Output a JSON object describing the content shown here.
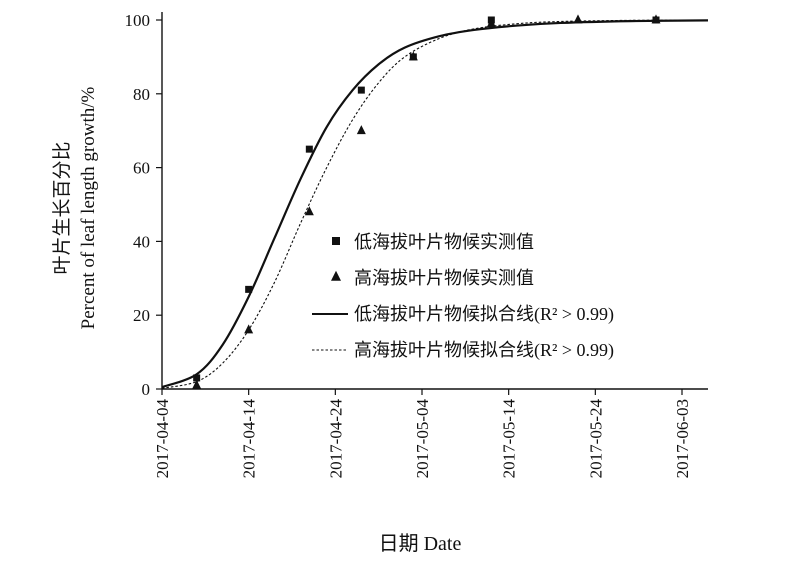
{
  "chart_data": {
    "type": "scatter",
    "ylabel_cn": "叶片生长百分比",
    "ylabel_en": "Percent of leaf length growth/%",
    "xlabel": "日期 Date",
    "ylim": [
      0,
      100
    ],
    "yticks": [
      0,
      20,
      40,
      60,
      80,
      100
    ],
    "xlim": [
      "2017-04-04",
      "2017-06-06"
    ],
    "xticks": [
      "2017-04-04",
      "2017-04-14",
      "2017-04-24",
      "2017-05-04",
      "2017-05-14",
      "2017-05-24",
      "2017-06-03"
    ],
    "legend_position": "center-right",
    "series": [
      {
        "name": "低海拔叶片物候实测值",
        "kind": "points",
        "marker": "square",
        "x": [
          "2017-04-08",
          "2017-04-14",
          "2017-04-21",
          "2017-04-27",
          "2017-05-03",
          "2017-05-12",
          "2017-05-31"
        ],
        "y": [
          3,
          27,
          65,
          81,
          90,
          100,
          100
        ]
      },
      {
        "name": "高海拔叶片物候实测值",
        "kind": "points",
        "marker": "triangle",
        "x": [
          "2017-04-08",
          "2017-04-14",
          "2017-04-21",
          "2017-04-27",
          "2017-05-03",
          "2017-05-12",
          "2017-05-22",
          "2017-05-31"
        ],
        "y": [
          1,
          16,
          48,
          70,
          90,
          99,
          100,
          100
        ]
      },
      {
        "name": "低海拔叶片物候拟合线",
        "r2_label": "R² > 0.99",
        "kind": "fit",
        "line_style": "solid",
        "x": [
          "2017-04-04",
          "2017-04-08",
          "2017-04-11",
          "2017-04-14",
          "2017-04-17",
          "2017-04-20",
          "2017-04-23",
          "2017-04-26",
          "2017-04-29",
          "2017-05-02",
          "2017-05-06",
          "2017-05-10",
          "2017-05-15",
          "2017-05-20",
          "2017-05-28",
          "2017-06-06"
        ],
        "y": [
          0.5,
          4,
          12,
          25,
          41,
          57,
          71,
          81,
          88,
          92.5,
          95.6,
          97.3,
          98.5,
          99.2,
          99.7,
          99.9
        ]
      },
      {
        "name": "高海拔叶片物候拟合线",
        "r2_label": "R² > 0.99",
        "kind": "fit",
        "line_style": "dotted",
        "x": [
          "2017-04-04",
          "2017-04-08",
          "2017-04-11",
          "2017-04-14",
          "2017-04-17",
          "2017-04-20",
          "2017-04-23",
          "2017-04-26",
          "2017-04-29",
          "2017-05-02",
          "2017-05-06",
          "2017-05-10",
          "2017-05-15",
          "2017-05-20",
          "2017-05-28",
          "2017-06-06"
        ],
        "y": [
          0.2,
          2,
          7,
          16,
          29,
          45,
          60,
          73,
          83,
          90,
          95,
          97.6,
          99,
          99.6,
          99.9,
          100
        ]
      }
    ]
  }
}
